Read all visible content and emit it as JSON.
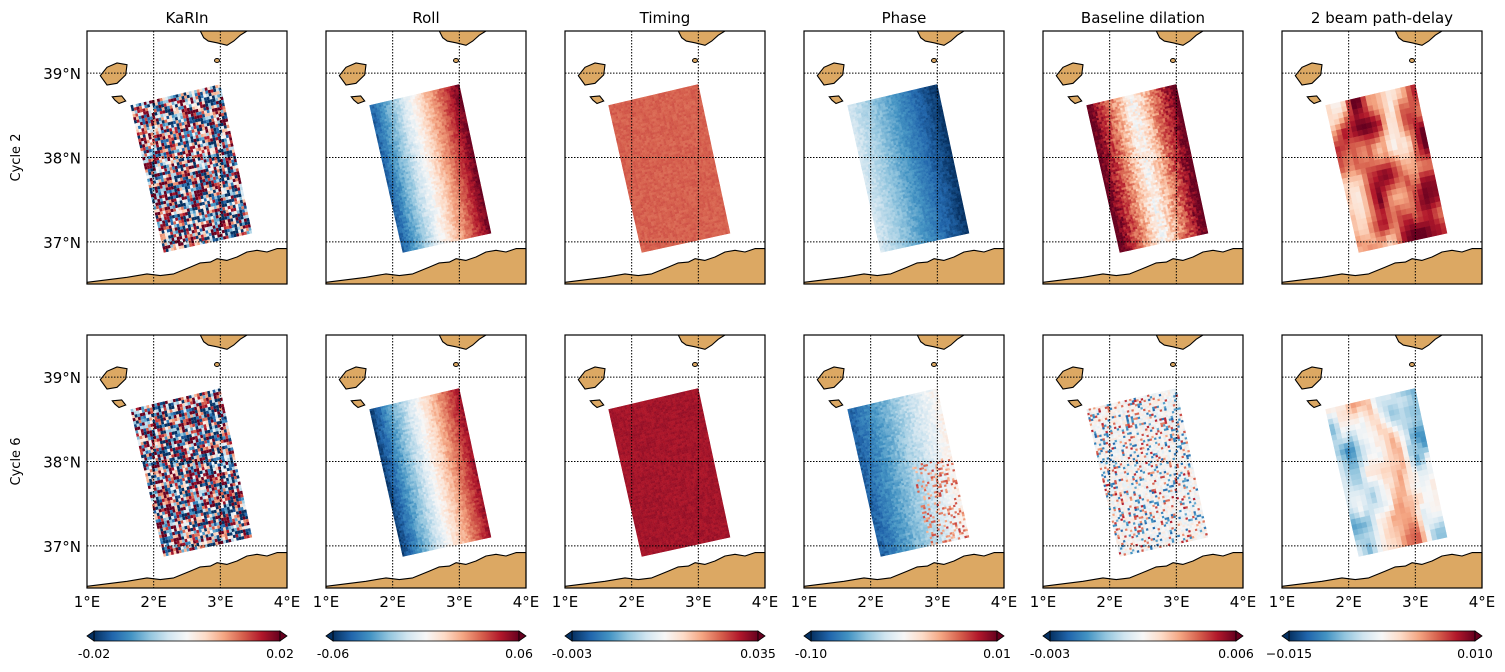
{
  "chart_data": {
    "type": "heatmap",
    "projection": "lat-lon map grid",
    "columns": [
      {
        "title": "KaRIn",
        "colorbar": {
          "min": "-0.02",
          "max": "0.02",
          "vmin": -0.02,
          "vmax": 0.02,
          "cmap": "RdBu_r"
        }
      },
      {
        "title": "Roll",
        "colorbar": {
          "min": "-0.06",
          "max": "0.06",
          "vmin": -0.06,
          "vmax": 0.06,
          "cmap": "RdBu_r"
        }
      },
      {
        "title": "Timing",
        "colorbar": {
          "min": "-0.003",
          "max": "0.035",
          "vmin": -0.003,
          "vmax": 0.035,
          "cmap": "RdBu_r"
        }
      },
      {
        "title": "Phase",
        "colorbar": {
          "min": "-0.10",
          "max": "0.01",
          "vmin": -0.1,
          "vmax": 0.01,
          "cmap": "RdBu_r"
        }
      },
      {
        "title": "Baseline dilation",
        "colorbar": {
          "min": "-0.003",
          "max": "0.006",
          "vmin": -0.003,
          "vmax": 0.006,
          "cmap": "RdBu_r"
        }
      },
      {
        "title": "2 beam path-delay",
        "colorbar": {
          "min": "−0.015",
          "max": "0.010",
          "vmin": -0.015,
          "vmax": 0.01,
          "cmap": "RdBu_r"
        }
      }
    ],
    "rows": [
      {
        "label": "Cycle 2"
      },
      {
        "label": "Cycle 6"
      }
    ],
    "x_ticks": [
      "1°E",
      "2°E",
      "3°E",
      "4°E"
    ],
    "x_tick_values": [
      1,
      2,
      3,
      4
    ],
    "y_ticks": [
      "37°N",
      "38°N",
      "39°N"
    ],
    "y_tick_values": [
      37,
      38,
      39
    ],
    "xlim": [
      1,
      4
    ],
    "ylim": [
      36.5,
      39.5
    ],
    "gridlines": "dotted, at 2°E, 3°E and 37°N, 38°N, 39°N",
    "swath_corners_lonlat": [
      [
        1.65,
        38.62
      ],
      [
        3.0,
        38.87
      ],
      [
        3.48,
        37.1
      ],
      [
        2.15,
        36.87
      ]
    ],
    "land_color": "#dca863",
    "cmap_colors": [
      "#053061",
      "#2166ac",
      "#4393c3",
      "#92c5de",
      "#d1e5f0",
      "#f7f7f7",
      "#fddbc7",
      "#f4a582",
      "#d6604d",
      "#b2182b",
      "#67001f"
    ]
  }
}
